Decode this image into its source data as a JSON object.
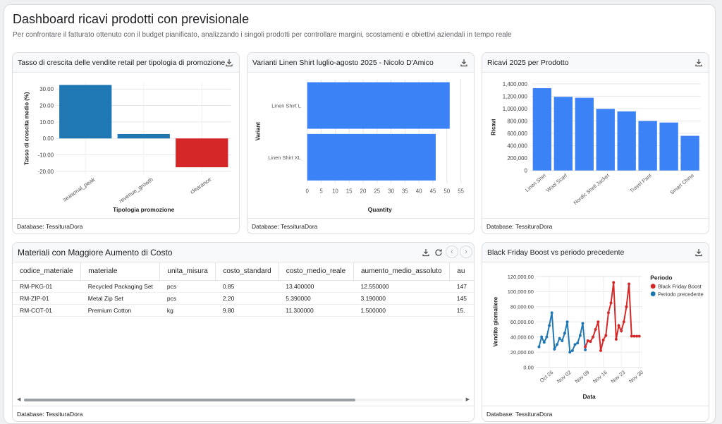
{
  "header": {
    "title": "Dashboard ricavi prodotti con previsionale",
    "subtitle": "Per confrontare il fatturato ottenuto con il budget pianificato, analizzando i singoli prodotti per controllare margini, scostamenti e obiettivi aziendali in tempo reale"
  },
  "footer_label": "Database: TessituraDora",
  "icons": {
    "download": "download-icon",
    "refresh": "refresh-icon",
    "prev": "chevron-left-icon",
    "next": "chevron-right-icon"
  },
  "colors": {
    "blue": "#3b82f6",
    "blue_dark": "#1f77b4",
    "red": "#d62728"
  },
  "cards": {
    "growth": {
      "title": "Tasso di crescita delle vendite retail per tipologia di promozione"
    },
    "linen": {
      "title": "Varianti Linen Shirt luglio-agosto 2025 - Nicolo D'Amico"
    },
    "ricavi": {
      "title": "Ricavi 2025 per Prodotto"
    },
    "materials": {
      "title": "Materiali con Maggiore Aumento di Costo"
    },
    "blackfriday": {
      "title": "Black Friday Boost vs periodo precedente"
    }
  },
  "table": {
    "columns": [
      "codice_materiale",
      "materiale",
      "unita_misura",
      "costo_standard",
      "costo_medio_reale",
      "aumento_medio_assoluto",
      "au"
    ],
    "rows": [
      [
        "RM-PKG-01",
        "Recycled Packaging Set",
        "pcs",
        "0.85",
        "13.400000",
        "12.550000",
        "147"
      ],
      [
        "RM-ZIP-01",
        "Metal Zip Set",
        "pcs",
        "2.20",
        "5.390000",
        "3.190000",
        "145"
      ],
      [
        "RM-COT-01",
        "Premium Cotton",
        "kg",
        "9.80",
        "11.300000",
        "1.500000",
        "15."
      ]
    ]
  },
  "chart_data": [
    {
      "type": "bar",
      "title": "Tasso di crescita delle vendite retail per tipologia di promozione",
      "categories": [
        "seasonal_peak",
        "revenue_growth",
        "clearance"
      ],
      "values": [
        32.5,
        2.7,
        -17.5
      ],
      "colors": [
        "#1f77b4",
        "#1f77b4",
        "#d62728"
      ],
      "xlabel": "Tipologia promozione",
      "ylabel": "Tasso di crescita medio (%)",
      "ylim": [
        -22,
        34
      ],
      "yticks": [
        30,
        20,
        10,
        0,
        -10,
        -20
      ],
      "ytick_labels": [
        "30.00",
        "20.00",
        "10.00",
        "0.00",
        "-10.00",
        "-20.00"
      ],
      "grid": true
    },
    {
      "type": "bar",
      "orientation": "horizontal",
      "title": "Varianti Linen Shirt luglio-agosto 2025 - Nicolo D'Amico",
      "categories": [
        "Linen Shirt L",
        "Linen Shirt XL"
      ],
      "values": [
        51,
        46
      ],
      "xlabel": "Quantity",
      "ylabel": "Variant",
      "xlim": [
        0,
        55
      ],
      "xticks": [
        0,
        5,
        10,
        15,
        20,
        25,
        30,
        35,
        40,
        45,
        50,
        55
      ],
      "grid": true
    },
    {
      "type": "bar",
      "title": "Ricavi 2025 per Prodotto",
      "categories": [
        "Linen Shirt",
        "Wool Scarf",
        "",
        "Nordic Shell Jacket",
        "",
        "Travel Pant",
        "",
        "Smart Chino"
      ],
      "values": [
        1330000,
        1190000,
        1175000,
        995000,
        955000,
        800000,
        775000,
        560000
      ],
      "ylabel": "Ricavi",
      "ylim": [
        0,
        1400000
      ],
      "yticks": [
        0,
        200000,
        400000,
        600000,
        800000,
        1000000,
        1200000,
        1400000
      ],
      "ytick_labels": [
        "0",
        "200,000",
        "400,000",
        "600,000",
        "800,000",
        "1,000,000",
        "1,200,000",
        "1,400,000"
      ],
      "grid": true
    },
    {
      "type": "line",
      "title": "Black Friday Boost vs periodo precedente",
      "xlabel": "Data",
      "ylabel": "Vendite giornaliere",
      "x_tick_labels": [
        "Oct 26",
        "Nov 02",
        "Nov 09",
        "Nov 16",
        "Nov 23",
        "Nov 30"
      ],
      "x_ticks_day": [
        0,
        7,
        14,
        21,
        28,
        35
      ],
      "ylim": [
        0,
        120000
      ],
      "yticks": [
        0,
        20000,
        40000,
        60000,
        80000,
        100000,
        120000
      ],
      "ytick_labels": [
        "0.00",
        "20,000.00",
        "40,000.00",
        "60,000.00",
        "80,000.00",
        "100,000.00",
        "120,000.00"
      ],
      "legend_title": "Periodo",
      "legend_position": "right",
      "series": [
        {
          "name": "Periodo precedente",
          "color": "#1f77b4",
          "x": [
            -4,
            -3,
            -2,
            -1,
            0,
            1,
            2,
            3,
            4,
            5,
            6,
            7,
            8,
            9,
            10,
            11,
            12,
            13,
            14
          ],
          "values": [
            27000,
            40000,
            33000,
            40000,
            55000,
            72000,
            24000,
            30000,
            38000,
            35000,
            45000,
            60000,
            20000,
            22000,
            30000,
            32000,
            42000,
            58000,
            23000
          ]
        },
        {
          "name": "Black Friday Boost",
          "color": "#d62728",
          "x": [
            14,
            15,
            16,
            17,
            18,
            19,
            20,
            21,
            22,
            23,
            24,
            25,
            26,
            27,
            28,
            29,
            30,
            31,
            32,
            33,
            34,
            35
          ],
          "values": [
            27000,
            35000,
            34000,
            40000,
            50000,
            60000,
            22000,
            36000,
            42000,
            72000,
            85000,
            112000,
            37000,
            55000,
            48000,
            60000,
            80000,
            110000,
            41000,
            41000,
            41000,
            41000
          ]
        }
      ]
    }
  ]
}
